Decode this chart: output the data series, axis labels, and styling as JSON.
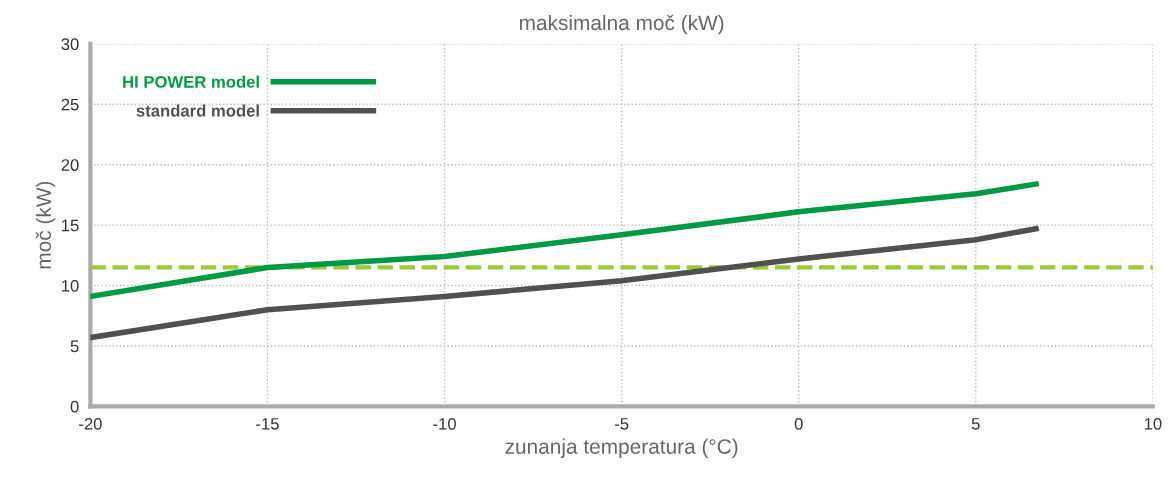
{
  "chart_data": {
    "type": "line",
    "title": "maksimalna moč (kW)",
    "xlabel": "zunanja temperatura (°C)",
    "ylabel": "moč (kW)",
    "series": [
      {
        "name": "HI POWER model",
        "color": "#009a44",
        "x": [
          -20,
          -15,
          -10,
          -5,
          0,
          5,
          6.7
        ],
        "values": [
          9.1,
          11.5,
          12.4,
          14.2,
          16.1,
          17.6,
          18.4
        ]
      },
      {
        "name": "standard model",
        "color": "#505050",
        "x": [
          -20,
          -15,
          -10,
          -5,
          0,
          5,
          6.7
        ],
        "values": [
          5.7,
          8.0,
          9.1,
          10.4,
          12.2,
          13.8,
          14.7
        ]
      }
    ],
    "ref_lines": [
      {
        "axis": "y",
        "value": 11.5,
        "color": "#9cc83a",
        "line_style": "dashed"
      }
    ],
    "xlim": [
      -20,
      10
    ],
    "xticks": [
      -20,
      -15,
      -10,
      -5,
      0,
      5,
      10
    ],
    "ylim": [
      0,
      30
    ],
    "yticks": [
      0,
      5,
      10,
      15,
      20,
      25,
      30
    ],
    "grid": true,
    "legend": "top left",
    "marker": "none",
    "line_style": "solid"
  }
}
